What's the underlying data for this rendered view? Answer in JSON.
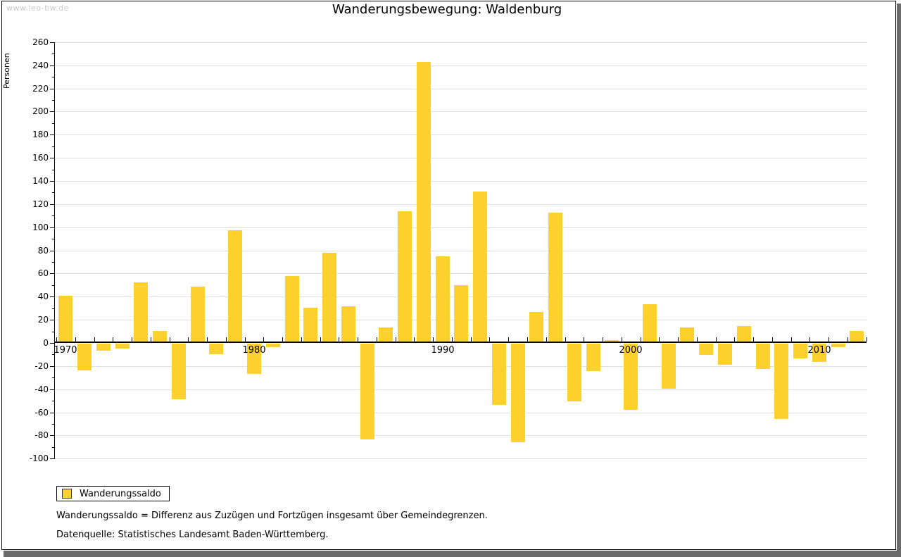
{
  "watermark": "www.leo-bw.de",
  "title": "Wanderungsbewegung: Waldenburg",
  "y_axis_label": "Personen",
  "legend": {
    "label": "Wanderungssaldo"
  },
  "footnotes": [
    "Wanderungssaldo = Differenz aus Zuzügen und Fortzügen insgesamt über Gemeindegrenzen.",
    "Datenquelle: Statistisches Landesamt Baden-Württemberg."
  ],
  "colors": {
    "bar": "#FCD12E",
    "grid": "#E0E0E0",
    "axis": "#000000",
    "watermark": "#C9C9C9",
    "frame_shadow": "#6B6B6B"
  },
  "chart_data": {
    "type": "bar",
    "title": "Wanderungsbewegung: Waldenburg",
    "ylabel": "Personen",
    "xlabel": "",
    "categories": [
      1970,
      1971,
      1972,
      1973,
      1974,
      1975,
      1976,
      1977,
      1978,
      1979,
      1980,
      1981,
      1982,
      1983,
      1984,
      1985,
      1986,
      1987,
      1988,
      1989,
      1990,
      1991,
      1992,
      1993,
      1994,
      1995,
      1996,
      1997,
      1998,
      1999,
      2000,
      2001,
      2002,
      2003,
      2004,
      2005,
      2006,
      2007,
      2008,
      2009,
      2010,
      2011,
      2012
    ],
    "series": [
      {
        "name": "Wanderungssaldo",
        "values": [
          40,
          -23,
          -6,
          -4,
          52,
          10,
          -48,
          48,
          -9,
          97,
          -26,
          -3,
          57,
          30,
          77,
          31,
          -83,
          13,
          113,
          242,
          74,
          49,
          130,
          -53,
          -85,
          26,
          112,
          -50,
          -24,
          2,
          -57,
          33,
          -39,
          13,
          -10,
          -18,
          14,
          -22,
          -65,
          -13,
          -16,
          -3,
          10
        ]
      }
    ],
    "ylim": [
      -100,
      260
    ],
    "ytick_step": 20,
    "yminor_step": 10,
    "xtick_labeled": [
      1970,
      1980,
      1990,
      2000,
      2010
    ],
    "grid": true,
    "legend_position": "bottom-left"
  }
}
